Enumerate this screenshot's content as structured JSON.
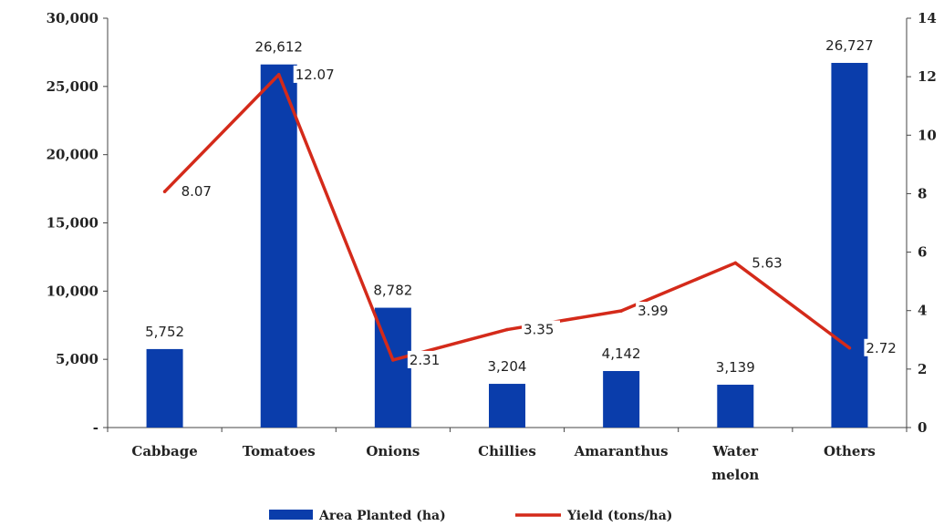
{
  "chart_data": {
    "type": "bar+line",
    "categories": [
      [
        "Cabbage"
      ],
      [
        "Tomatoes"
      ],
      [
        "Onions"
      ],
      [
        "Chillies"
      ],
      [
        "Amaranthus"
      ],
      [
        "Water",
        "melon"
      ],
      [
        "Others"
      ]
    ],
    "series": [
      {
        "name": "Area Planted (ha)",
        "type": "bar",
        "axis": "left",
        "color": "#0a3dab",
        "values": [
          5752,
          26612,
          8782,
          3204,
          4142,
          3139,
          26727
        ],
        "value_labels": [
          "5,752",
          "26,612",
          "8,782",
          "3,204",
          "4,142",
          "3,139",
          "26,727"
        ]
      },
      {
        "name": "Yield (tons/ha)",
        "type": "line",
        "axis": "right",
        "color": "#d42a1a",
        "values": [
          8.07,
          12.07,
          2.31,
          3.35,
          3.99,
          5.63,
          2.72
        ],
        "value_labels": [
          "8.07",
          "12.07",
          "2.31",
          "3.35",
          "3.99",
          "5.63",
          "2.72"
        ]
      }
    ],
    "y_left": {
      "ylim": [
        0,
        30000
      ],
      "ticks": [
        "-",
        "5,000",
        "10,000",
        "15,000",
        "20,000",
        "25,000",
        "30,000"
      ]
    },
    "y_right": {
      "ylim": [
        0,
        14
      ],
      "ticks": [
        "0",
        "2",
        "4",
        "6",
        "8",
        "10",
        "12",
        "14"
      ]
    },
    "grid": false,
    "legend_position": "bottom"
  }
}
